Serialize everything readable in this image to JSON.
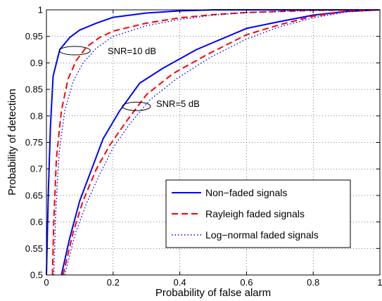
{
  "chart_data": {
    "type": "line",
    "title": "",
    "xlabel": "Probability of false alarm",
    "ylabel": "Probability of detection",
    "xlim": [
      0,
      1
    ],
    "ylim": [
      0.5,
      1
    ],
    "xticks": [
      0,
      0.2,
      0.4,
      0.6,
      0.8,
      1
    ],
    "xtick_labels": [
      "0",
      "0.2",
      "0.4",
      "0.6",
      "0.8",
      "1"
    ],
    "yticks": [
      0.5,
      0.55,
      0.6,
      0.65,
      0.7,
      0.75,
      0.8,
      0.85,
      0.9,
      0.95,
      1
    ],
    "ytick_labels": [
      "0.5",
      "0.55",
      "0.6",
      "0.65",
      "0.7",
      "0.75",
      "0.8",
      "0.85",
      "0.9",
      "0.95",
      "1"
    ],
    "grid": true,
    "legend_position": "bottom-right",
    "legend": [
      {
        "name": "Non−faded signals",
        "color": "#0000ff",
        "style": "solid"
      },
      {
        "name": "Rayleigh faded signals",
        "color": "#ff0000",
        "style": "dashed"
      },
      {
        "name": "Log−normal faded signals",
        "color": "#0000ff",
        "style": "dotted"
      }
    ],
    "annotations": [
      {
        "text": "SNR=10 dB",
        "ellipse_center": [
          0.085,
          0.923
        ]
      },
      {
        "text": "SNR=5 dB",
        "ellipse_center": [
          0.27,
          0.818
        ]
      }
    ],
    "series": [
      {
        "name": "Non−faded signals",
        "group": "SNR=10 dB",
        "color": "#0000ff",
        "style": "solid",
        "x": [
          0.0,
          0.006,
          0.012,
          0.02,
          0.04,
          0.07,
          0.1,
          0.15,
          0.2,
          0.3,
          0.4,
          0.5,
          0.6,
          1.0
        ],
        "y": [
          0.5,
          0.66,
          0.78,
          0.875,
          0.925,
          0.948,
          0.962,
          0.975,
          0.986,
          0.994,
          0.998,
          1.0,
          1.0,
          1.0
        ]
      },
      {
        "name": "Rayleigh faded signals",
        "group": "SNR=10 dB",
        "color": "#ff0000",
        "style": "dashed",
        "x": [
          0.018,
          0.022,
          0.03,
          0.045,
          0.065,
          0.09,
          0.12,
          0.16,
          0.2,
          0.3,
          0.4,
          0.5,
          0.6,
          0.8,
          1.0
        ],
        "y": [
          0.5,
          0.6,
          0.72,
          0.81,
          0.87,
          0.905,
          0.93,
          0.948,
          0.96,
          0.975,
          0.985,
          0.991,
          0.995,
          0.999,
          1.0
        ]
      },
      {
        "name": "Log−normal faded signals",
        "group": "SNR=10 dB",
        "color": "#0000ff",
        "style": "dotted",
        "x": [
          0.022,
          0.028,
          0.038,
          0.055,
          0.08,
          0.11,
          0.15,
          0.2,
          0.3,
          0.4,
          0.5,
          0.6,
          0.8,
          1.0
        ],
        "y": [
          0.5,
          0.62,
          0.73,
          0.81,
          0.865,
          0.9,
          0.928,
          0.95,
          0.97,
          0.982,
          0.99,
          0.995,
          0.999,
          1.0
        ]
      },
      {
        "name": "Non−faded signals",
        "group": "SNR=5 dB",
        "color": "#0000ff",
        "style": "solid",
        "x": [
          0.045,
          0.07,
          0.1,
          0.13,
          0.17,
          0.22,
          0.28,
          0.35,
          0.45,
          0.6,
          0.7,
          0.8,
          0.9,
          1.0
        ],
        "y": [
          0.5,
          0.57,
          0.64,
          0.69,
          0.757,
          0.81,
          0.862,
          0.89,
          0.925,
          0.965,
          0.978,
          0.99,
          0.997,
          1.0
        ]
      },
      {
        "name": "Rayleigh faded signals",
        "group": "SNR=5 dB",
        "color": "#ff0000",
        "style": "dashed",
        "x": [
          0.05,
          0.08,
          0.11,
          0.15,
          0.19,
          0.24,
          0.3,
          0.38,
          0.48,
          0.6,
          0.7,
          0.8,
          0.9,
          1.0
        ],
        "y": [
          0.5,
          0.58,
          0.64,
          0.7,
          0.745,
          0.79,
          0.84,
          0.88,
          0.915,
          0.953,
          0.972,
          0.988,
          0.997,
          1.0
        ]
      },
      {
        "name": "Log−normal faded signals",
        "group": "SNR=5 dB",
        "color": "#0000ff",
        "style": "dotted",
        "x": [
          0.055,
          0.085,
          0.12,
          0.16,
          0.2,
          0.25,
          0.31,
          0.39,
          0.49,
          0.6,
          0.7,
          0.8,
          0.9,
          1.0
        ],
        "y": [
          0.5,
          0.575,
          0.635,
          0.69,
          0.74,
          0.785,
          0.83,
          0.87,
          0.91,
          0.945,
          0.968,
          0.985,
          0.996,
          1.0
        ]
      }
    ]
  }
}
